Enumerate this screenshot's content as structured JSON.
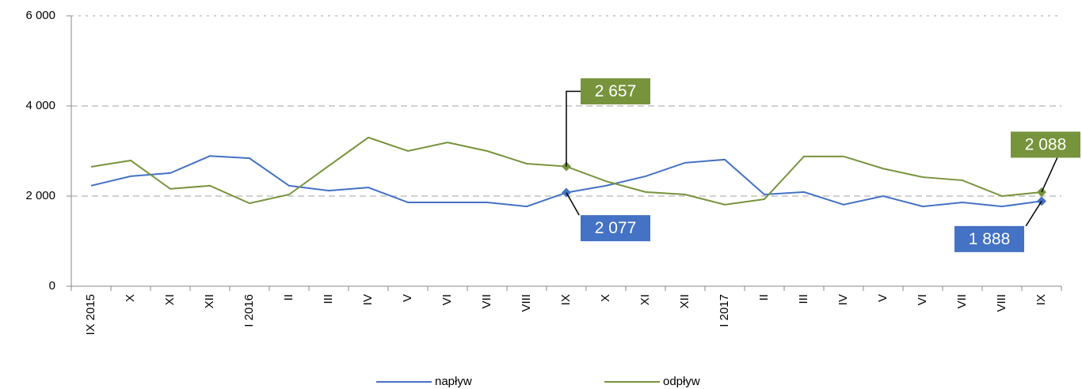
{
  "chart_data": {
    "type": "line",
    "categories": [
      "IX 2015",
      "X",
      "XI",
      "XII",
      "I 2016",
      "II",
      "III",
      "IV",
      "V",
      "VI",
      "VII",
      "VIII",
      "IX",
      "X",
      "XI",
      "XII",
      "I 2017",
      "II",
      "III",
      "IV",
      "V",
      "VI",
      "VII",
      "VIII",
      "IX"
    ],
    "series": [
      {
        "name": "napływ",
        "color": "#4472c4",
        "values": [
          2230,
          2440,
          2510,
          2890,
          2840,
          2230,
          2120,
          2190,
          1860,
          1860,
          1860,
          1770,
          2077,
          2230,
          2440,
          2740,
          2810,
          2035,
          2090,
          1810,
          2000,
          1770,
          1860,
          1770,
          1888
        ],
        "value_labels": [
          null,
          null,
          null,
          null,
          null,
          null,
          null,
          null,
          null,
          null,
          null,
          null,
          "2 077",
          null,
          null,
          null,
          null,
          null,
          null,
          null,
          null,
          null,
          null,
          null,
          "1 888"
        ]
      },
      {
        "name": "odpływ",
        "color": "#77933c",
        "values": [
          2650,
          2790,
          2160,
          2230,
          1840,
          2035,
          2670,
          3300,
          3000,
          3190,
          3000,
          2720,
          2657,
          2330,
          2090,
          2035,
          1810,
          1930,
          2880,
          2880,
          2610,
          2420,
          2350,
          2000,
          2088
        ],
        "value_labels": [
          null,
          null,
          null,
          null,
          null,
          null,
          null,
          null,
          null,
          null,
          null,
          null,
          "2 657",
          null,
          null,
          null,
          null,
          null,
          null,
          null,
          null,
          null,
          null,
          null,
          "2 088"
        ]
      }
    ],
    "ylim": [
      0,
      6000
    ],
    "yticks": [
      0,
      {
        "value": 2000,
        "label": "2 000"
      },
      {
        "value": 4000,
        "label": "4 000"
      },
      {
        "value": 6000,
        "label": "6 000"
      }
    ],
    "grid": true,
    "legend": "bottom"
  }
}
